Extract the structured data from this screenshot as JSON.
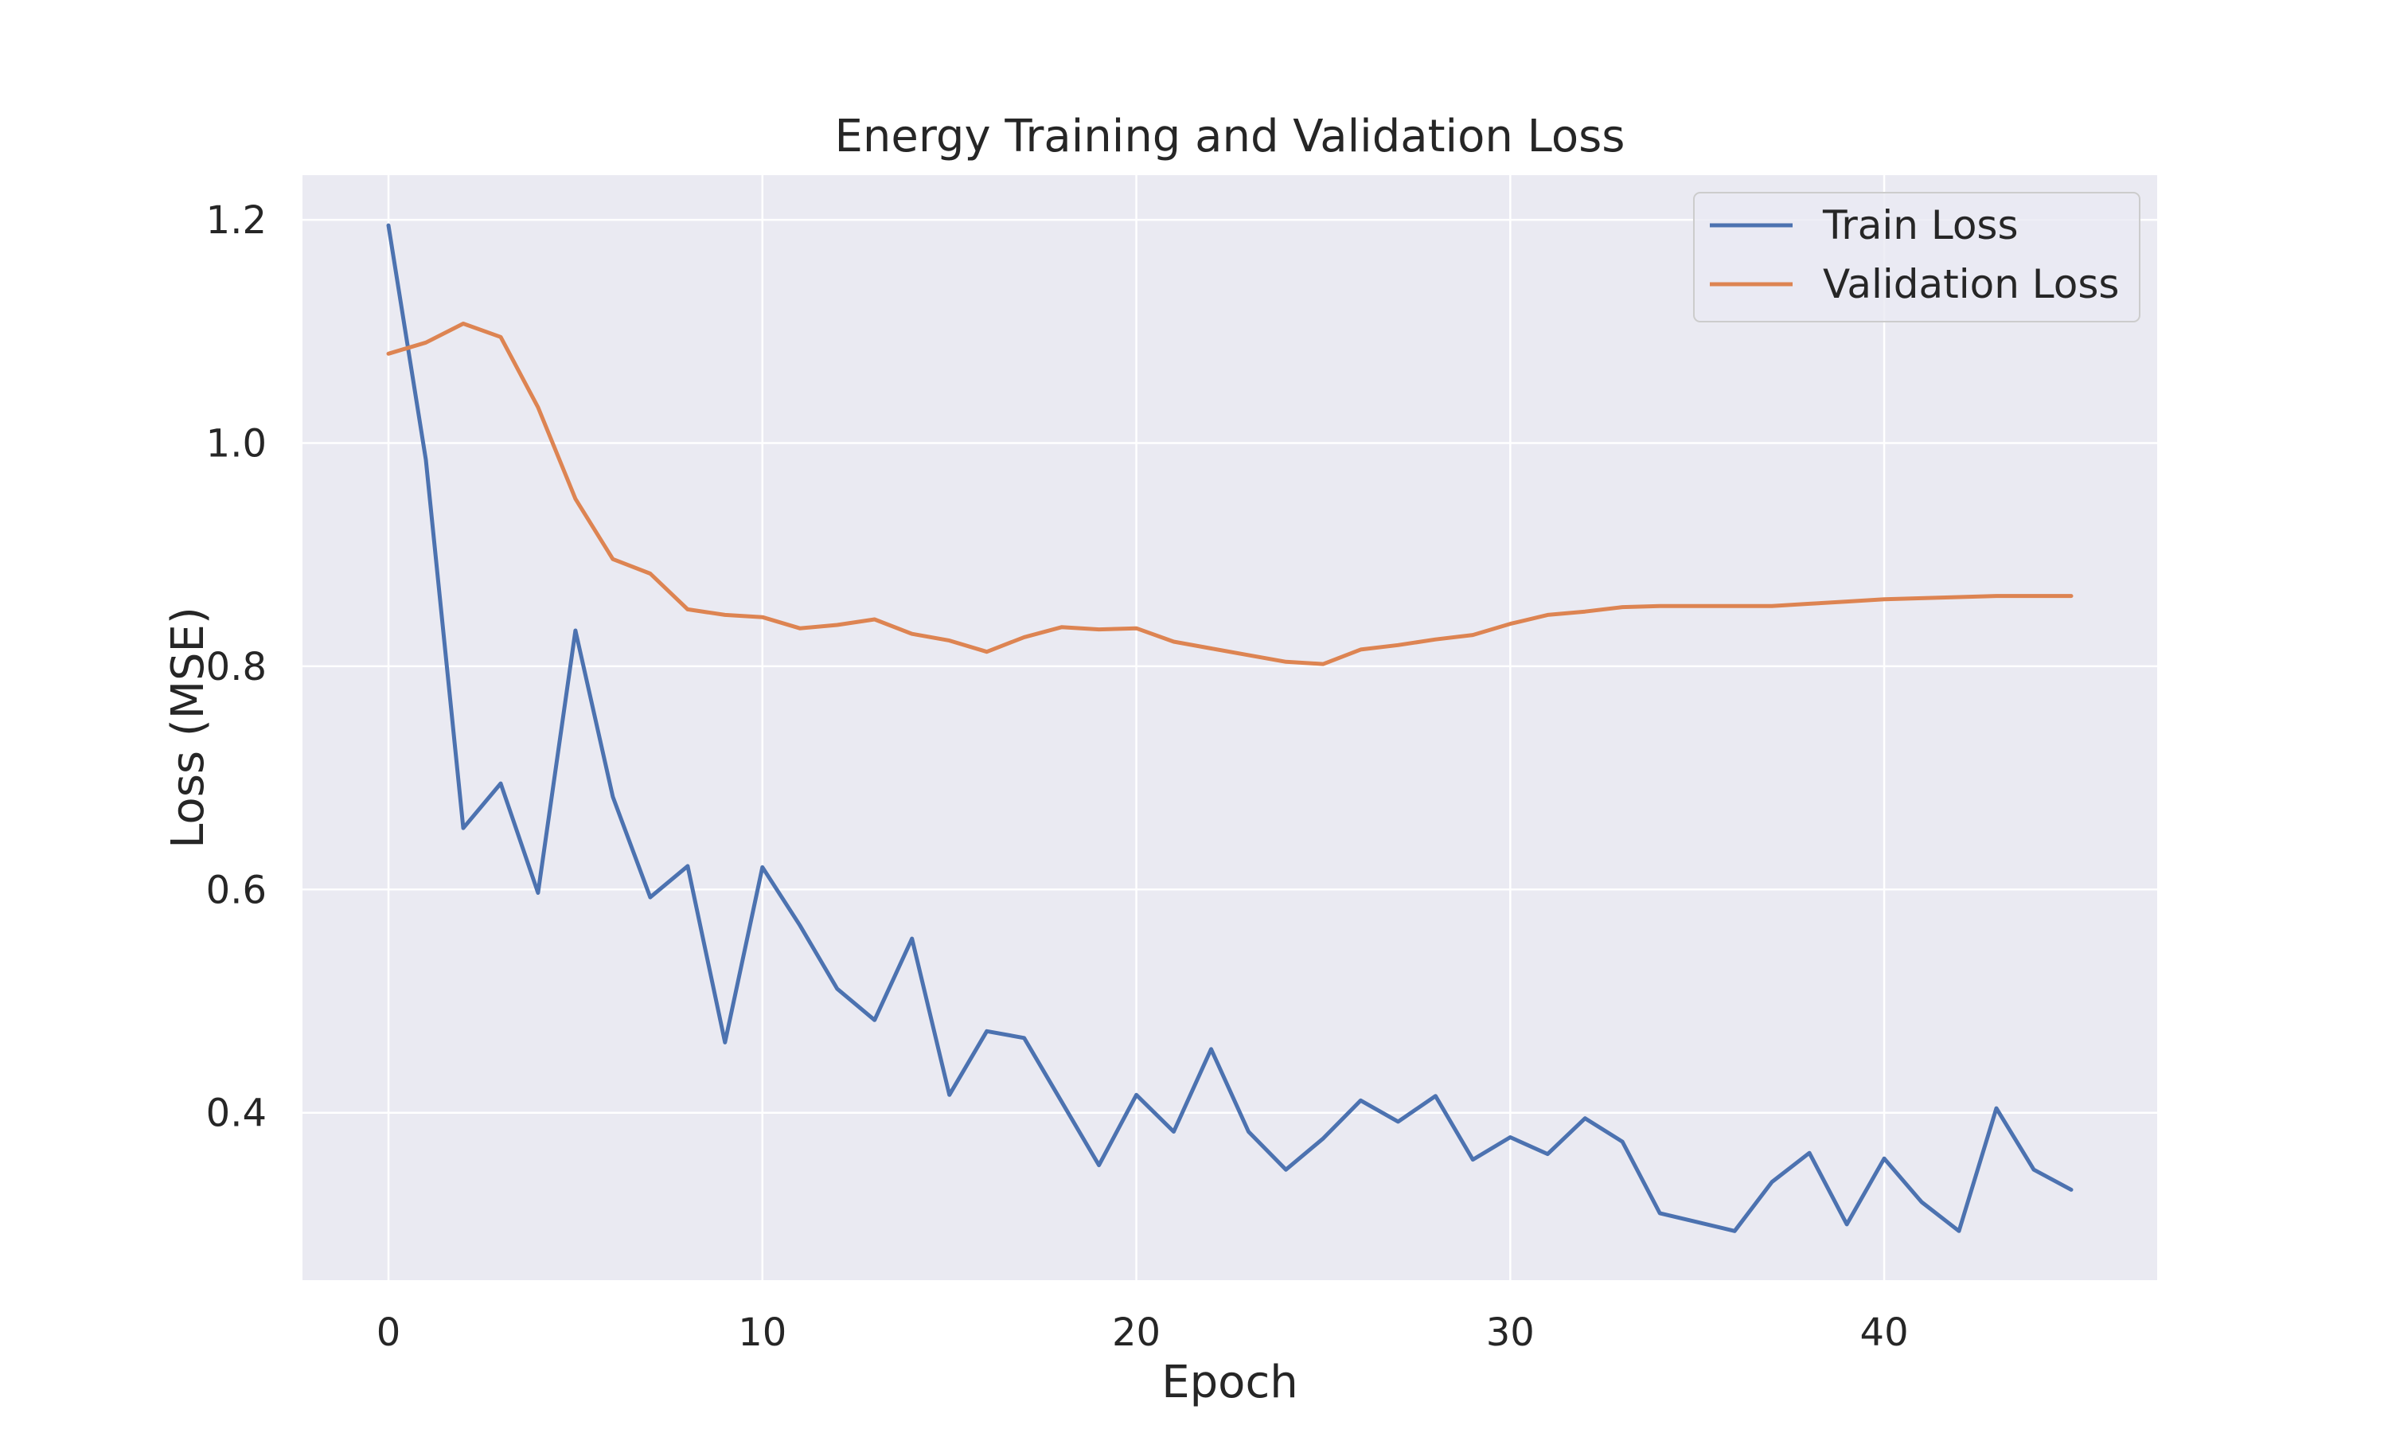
{
  "chart_data": {
    "type": "line",
    "title": "Energy Training and Validation Loss",
    "xlabel": "Epoch",
    "ylabel": "Loss (MSE)",
    "xlim": [
      -2.3,
      47.3
    ],
    "ylim": [
      0.25,
      1.24
    ],
    "x_ticks": [
      0,
      10,
      20,
      30,
      40
    ],
    "y_ticks": [
      0.4,
      0.6,
      0.8,
      1.0,
      1.2
    ],
    "y_tick_labels": [
      "0.4",
      "0.6",
      "0.8",
      "1.0",
      "1.2"
    ],
    "grid": true,
    "legend_position": "top-right",
    "x": [
      0,
      1,
      2,
      3,
      4,
      5,
      6,
      7,
      8,
      9,
      10,
      11,
      12,
      13,
      14,
      15,
      16,
      17,
      18,
      19,
      20,
      21,
      22,
      23,
      24,
      25,
      26,
      27,
      28,
      29,
      30,
      31,
      32,
      33,
      34,
      35,
      36,
      37,
      38,
      39,
      40,
      41,
      42,
      43,
      44,
      45
    ],
    "series": [
      {
        "name": "Train Loss",
        "color": "#4c72b0",
        "values": [
          1.195,
          0.985,
          0.655,
          0.695,
          0.597,
          0.832,
          0.683,
          0.593,
          0.621,
          0.463,
          0.62,
          0.568,
          0.511,
          0.483,
          0.556,
          0.416,
          0.473,
          0.467,
          0.41,
          0.353,
          0.416,
          0.383,
          0.457,
          0.383,
          0.349,
          0.377,
          0.411,
          0.392,
          0.415,
          0.358,
          0.378,
          0.363,
          0.395,
          0.374,
          0.31,
          0.302,
          0.294,
          0.338,
          0.364,
          0.3,
          0.359,
          0.32,
          0.294,
          0.404,
          0.349,
          0.331
        ]
      },
      {
        "name": "Validation Loss",
        "color": "#dd8452",
        "values": [
          1.08,
          1.09,
          1.107,
          1.095,
          1.032,
          0.95,
          0.896,
          0.883,
          0.851,
          0.846,
          0.844,
          0.834,
          0.837,
          0.842,
          0.829,
          0.823,
          0.813,
          0.826,
          0.835,
          0.833,
          0.834,
          0.822,
          0.816,
          0.81,
          0.804,
          0.802,
          0.815,
          0.819,
          0.824,
          0.828,
          0.838,
          0.846,
          0.849,
          0.853,
          0.854,
          0.854,
          0.854,
          0.854,
          0.856,
          0.858,
          0.86,
          0.861,
          0.862,
          0.863,
          0.863,
          0.863
        ]
      }
    ]
  }
}
